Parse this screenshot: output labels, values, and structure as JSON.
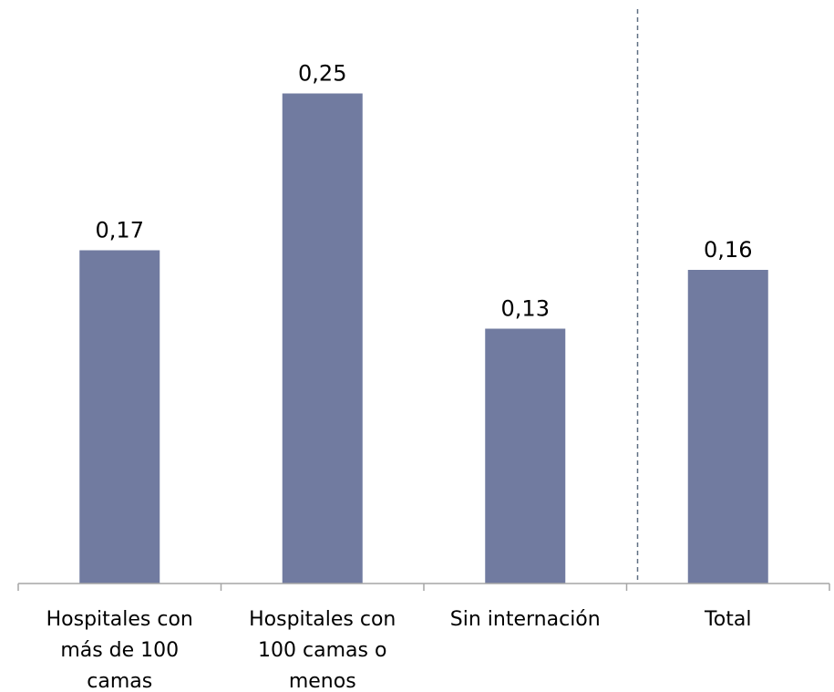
{
  "chart_data": {
    "type": "bar",
    "title": "",
    "xlabel": "",
    "ylabel": "",
    "categories": [
      [
        "Hospitales con",
        "más de 100",
        "camas"
      ],
      [
        "Hospitales con",
        "100 camas o",
        "menos"
      ],
      [
        "Sin internación"
      ],
      [
        "Total"
      ]
    ],
    "values": [
      0.17,
      0.25,
      0.13,
      0.16
    ],
    "data_labels": [
      "0,17",
      "0,25",
      "0,13",
      "0,16"
    ],
    "ylim": [
      0,
      0.3
    ],
    "grid": false,
    "legend": "none",
    "bar_color": "#717ba0",
    "separator": {
      "after_category_index": 2,
      "style": "dashed",
      "color": "#5f6f82"
    }
  }
}
